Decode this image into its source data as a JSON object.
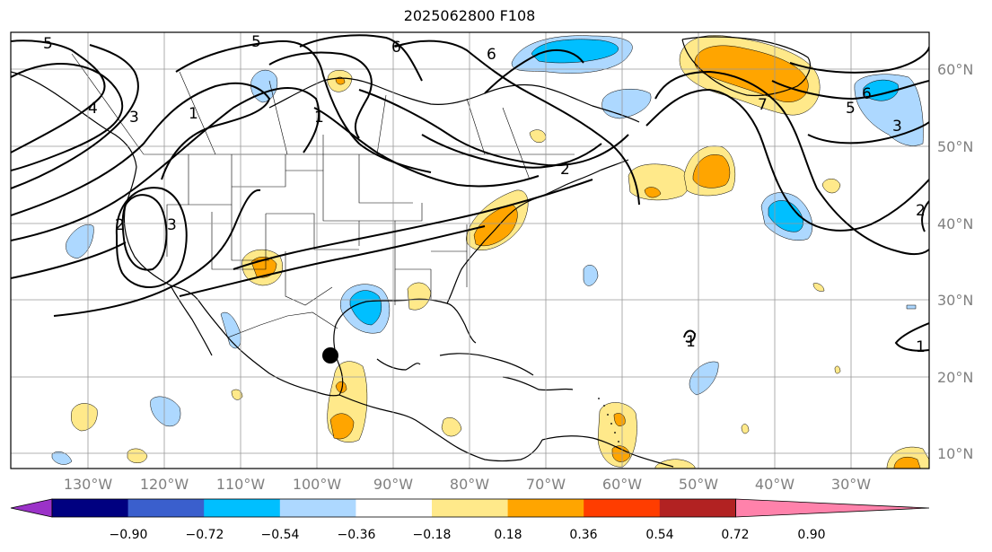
{
  "title": "2025062800 F108",
  "longitude_labels": [
    "130°W",
    "120°W",
    "110°W",
    "100°W",
    "90°W",
    "80°W",
    "70°W",
    "60°W",
    "50°W",
    "40°W",
    "30°W"
  ],
  "latitude_labels": [
    "60°N",
    "50°N",
    "40°N",
    "30°N",
    "20°N",
    "10°N"
  ],
  "colorbar": {
    "ticks": [
      "−0.90",
      "−0.72",
      "−0.54",
      "−0.36",
      "−0.18",
      "0.18",
      "0.36",
      "0.54",
      "0.72",
      "0.90"
    ],
    "colors": [
      "#9b32c8",
      "#000080",
      "#3a5fcd",
      "#00bfff",
      "#add8ff",
      "#ffffff",
      "#ffe98a",
      "#ffa500",
      "#ff3d00",
      "#b22222",
      "#ff82ab"
    ]
  },
  "contour_labels": [
    "5",
    "5",
    "6",
    "6",
    "3",
    "1",
    "4",
    "1",
    "2",
    "2",
    "3",
    "7",
    "5",
    "6",
    "3",
    "2",
    "1",
    "1"
  ],
  "marker": {
    "icon": "black-dot-icon"
  }
}
